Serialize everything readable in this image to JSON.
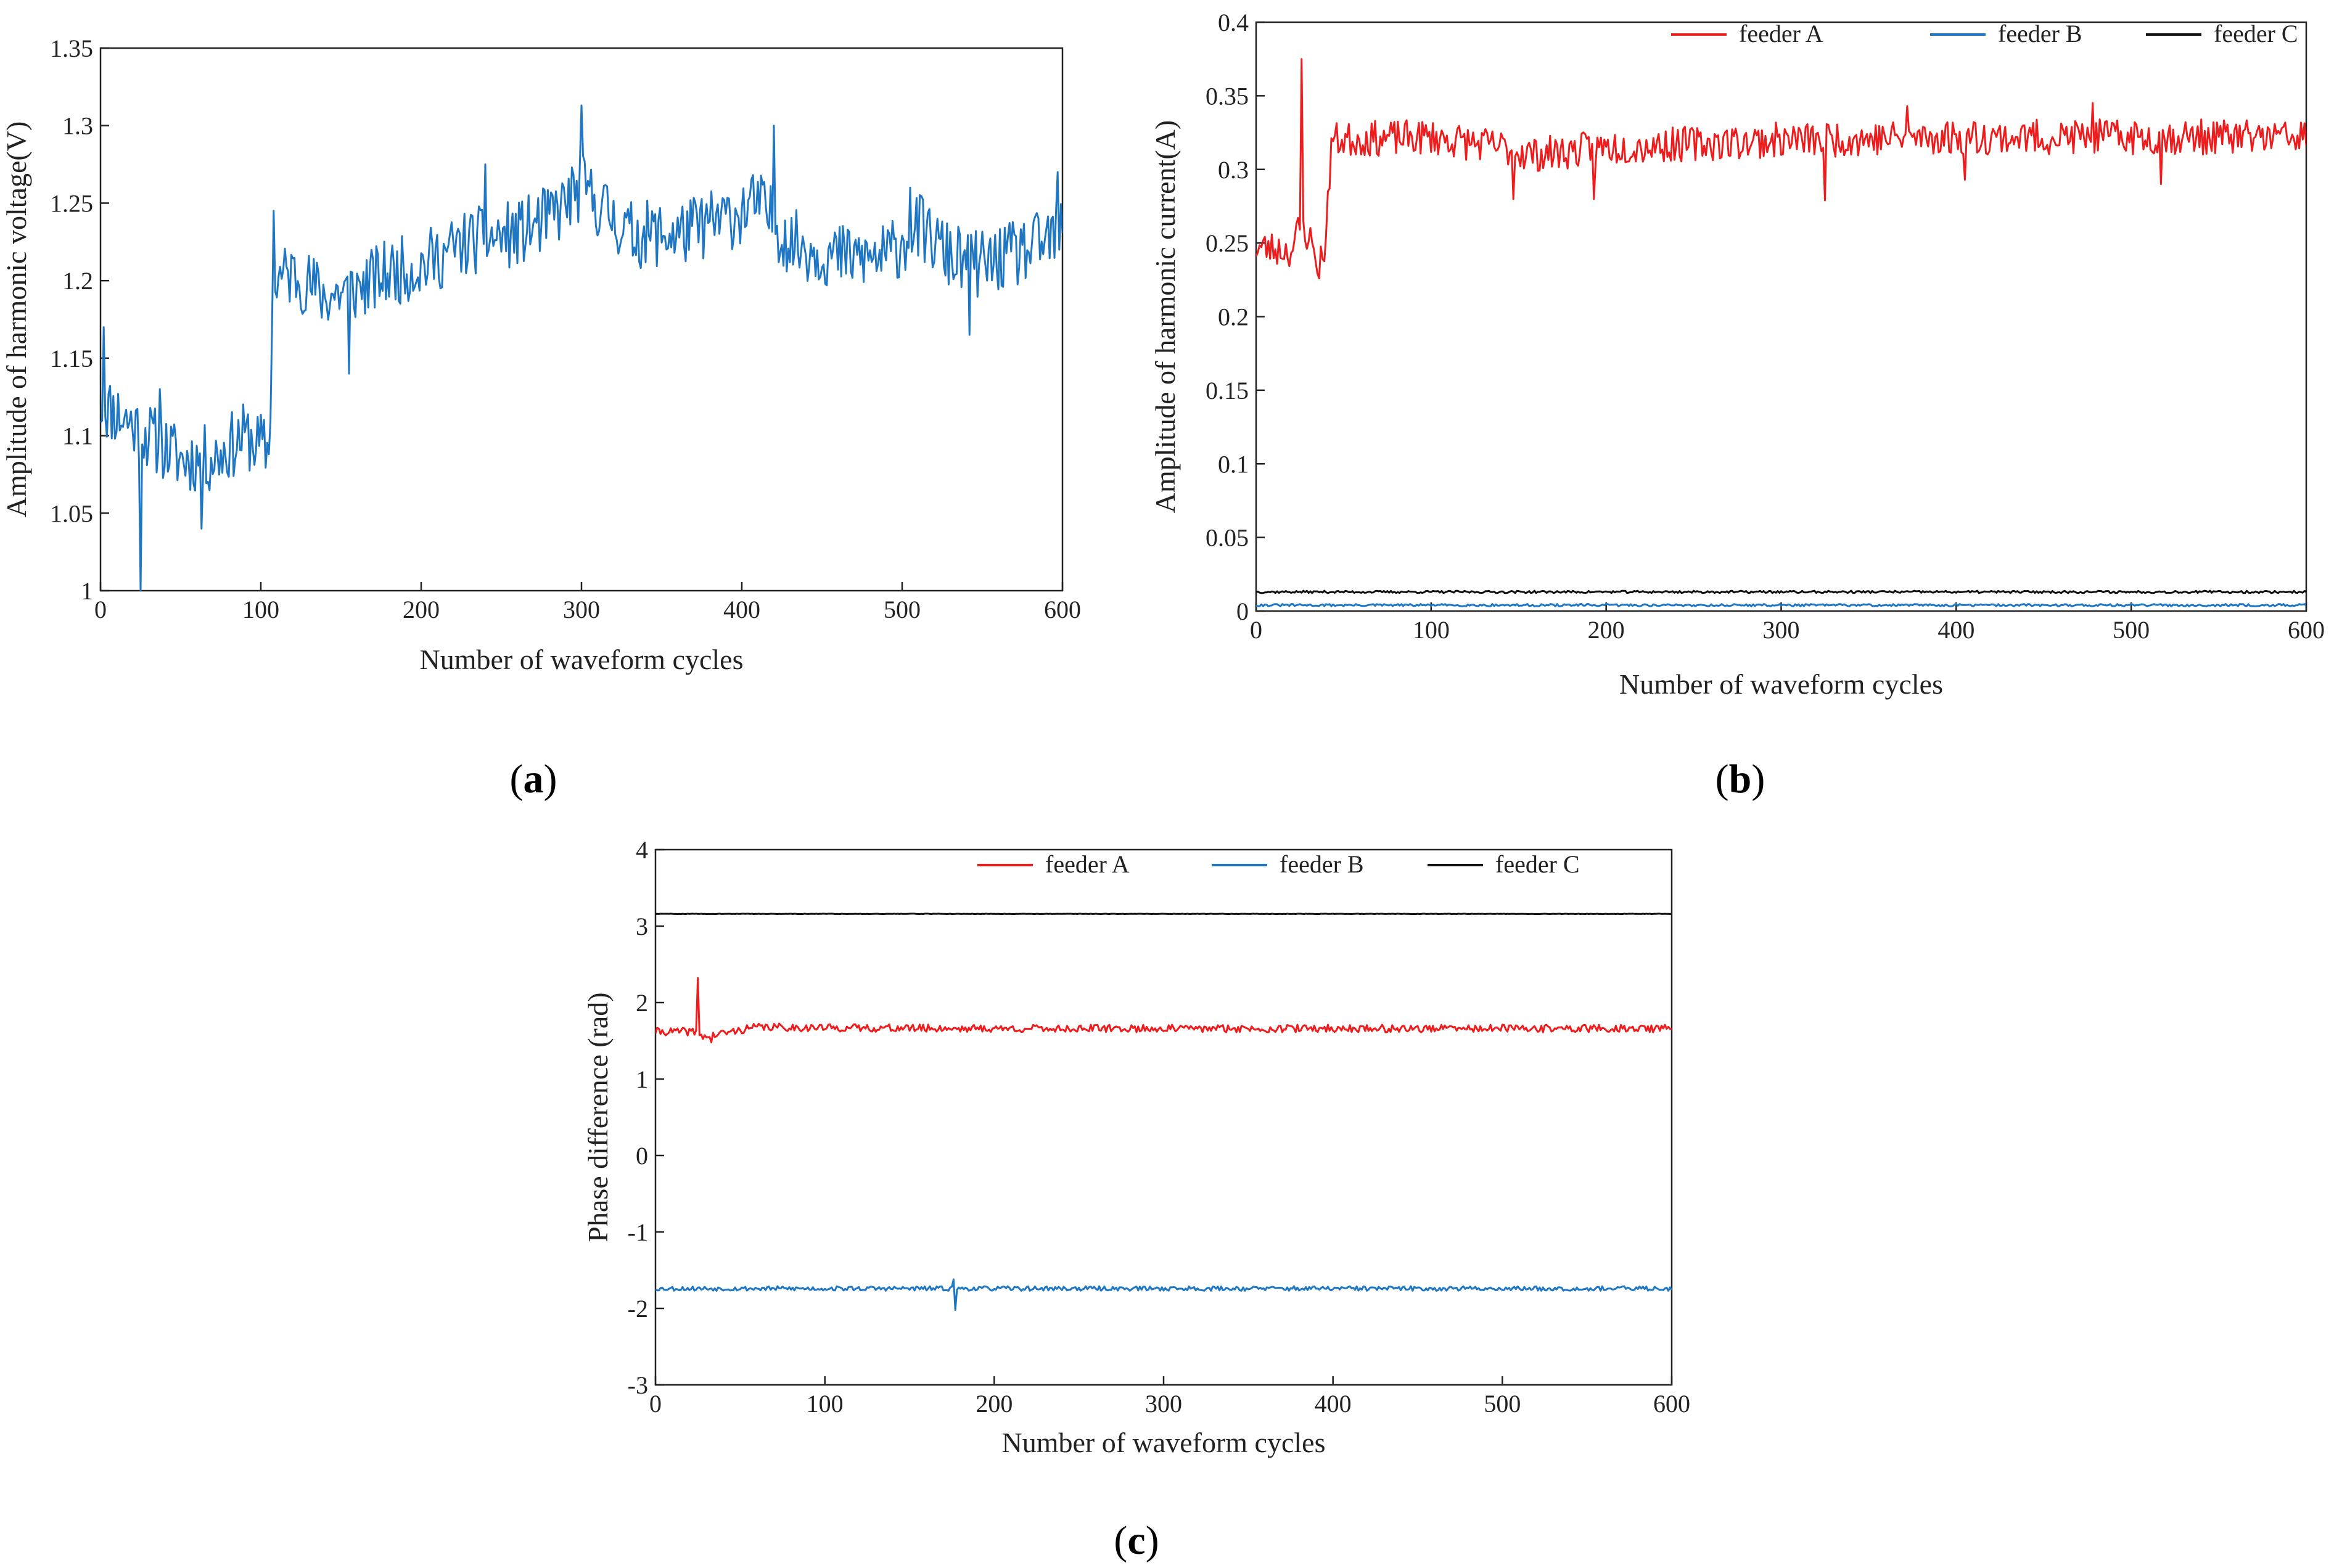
{
  "chart_data": [
    {
      "id": "a",
      "type": "line",
      "panel_label": "a",
      "xlabel": "Number of waveform cycles",
      "ylabel": "Amplitude of harmonic voltage(V)",
      "xlim": [
        0,
        600
      ],
      "ylim": [
        1,
        1.35
      ],
      "xticks": [
        "0",
        "100",
        "200",
        "300",
        "400",
        "500",
        "600"
      ],
      "yticks": [
        "1",
        "1.05",
        "1.1",
        "1.15",
        "1.2",
        "1.25",
        "1.3",
        "1.35"
      ],
      "legend": "none",
      "series": [
        {
          "name": "harmonic voltage",
          "color": "#1f77c4",
          "noise": 0.022,
          "seed": 11,
          "profile": [
            [
              0,
              1.12
            ],
            [
              10,
              1.115
            ],
            [
              30,
              1.1
            ],
            [
              50,
              1.085
            ],
            [
              70,
              1.085
            ],
            [
              90,
              1.1
            ],
            [
              105,
              1.09
            ],
            [
              108,
              1.2
            ],
            [
              120,
              1.205
            ],
            [
              140,
              1.19
            ],
            [
              160,
              1.195
            ],
            [
              180,
              1.205
            ],
            [
              200,
              1.21
            ],
            [
              230,
              1.225
            ],
            [
              260,
              1.23
            ],
            [
              280,
              1.24
            ],
            [
              300,
              1.26
            ],
            [
              330,
              1.23
            ],
            [
              360,
              1.23
            ],
            [
              390,
              1.24
            ],
            [
              410,
              1.25
            ],
            [
              430,
              1.225
            ],
            [
              460,
              1.215
            ],
            [
              490,
              1.215
            ],
            [
              510,
              1.235
            ],
            [
              530,
              1.215
            ],
            [
              550,
              1.21
            ],
            [
              580,
              1.22
            ],
            [
              600,
              1.23
            ]
          ],
          "spikes": [
            [
              2,
              1.17
            ],
            [
              25,
              1.0
            ],
            [
              37,
              1.13
            ],
            [
              63,
              1.04
            ],
            [
              108,
              1.245
            ],
            [
              155,
              1.14
            ],
            [
              240,
              1.275
            ],
            [
              300,
              1.313
            ],
            [
              420,
              1.3
            ],
            [
              505,
              1.26
            ],
            [
              542,
              1.165
            ],
            [
              597,
              1.27
            ]
          ]
        }
      ]
    },
    {
      "id": "b",
      "type": "line",
      "panel_label": "b",
      "xlabel": "Number of waveform cycles",
      "ylabel": "Amplitude of harmonic current(A)",
      "xlim": [
        0,
        600
      ],
      "ylim": [
        0,
        0.4
      ],
      "xticks": [
        "0",
        "100",
        "200",
        "300",
        "400",
        "500",
        "600"
      ],
      "yticks": [
        "0",
        "0.05",
        "0.1",
        "0.15",
        "0.2",
        "0.25",
        "0.3",
        "0.35",
        "0.4"
      ],
      "legend": "top-right",
      "series": [
        {
          "name": "feeder A",
          "color": "#ee1c1c",
          "noise": 0.012,
          "seed": 23,
          "profile": [
            [
              0,
              0.247
            ],
            [
              22,
              0.245
            ],
            [
              24,
              0.262
            ],
            [
              30,
              0.255
            ],
            [
              33,
              0.245
            ],
            [
              36,
              0.235
            ],
            [
              40,
              0.252
            ],
            [
              43,
              0.32
            ],
            [
              100,
              0.322
            ],
            [
              140,
              0.315
            ],
            [
              160,
              0.31
            ],
            [
              200,
              0.315
            ],
            [
              300,
              0.32
            ],
            [
              400,
              0.322
            ],
            [
              500,
              0.322
            ],
            [
              600,
              0.322
            ]
          ],
          "spikes": [
            [
              26,
              0.375
            ],
            [
              36,
              0.226
            ],
            [
              147,
              0.28
            ],
            [
              193,
              0.28
            ],
            [
              325,
              0.279
            ],
            [
              372,
              0.343
            ],
            [
              405,
              0.293
            ],
            [
              478,
              0.345
            ],
            [
              517,
              0.29
            ],
            [
              600,
              0.316
            ]
          ]
        },
        {
          "name": "feeder B",
          "color": "#1f77c4",
          "noise": 0.0008,
          "seed": 31,
          "profile": [
            [
              0,
              0.004
            ],
            [
              600,
              0.004
            ]
          ],
          "spikes": []
        },
        {
          "name": "feeder C",
          "color": "#111111",
          "noise": 0.0008,
          "seed": 37,
          "profile": [
            [
              0,
              0.013
            ],
            [
              600,
              0.013
            ]
          ],
          "spikes": []
        }
      ]
    },
    {
      "id": "c",
      "type": "line",
      "panel_label": "c",
      "xlabel": "Number of waveform cycles",
      "ylabel": "Phase difference (rad)",
      "xlim": [
        0,
        600
      ],
      "ylim": [
        -3,
        4
      ],
      "xticks": [
        "0",
        "100",
        "200",
        "300",
        "400",
        "500",
        "600"
      ],
      "yticks": [
        "-3",
        "-2",
        "-1",
        "0",
        "1",
        "2",
        "3",
        "4"
      ],
      "legend": "top-right",
      "series": [
        {
          "name": "feeder A",
          "color": "#ee1c1c",
          "noise": 0.05,
          "seed": 41,
          "profile": [
            [
              0,
              1.62
            ],
            [
              22,
              1.62
            ],
            [
              30,
              1.55
            ],
            [
              40,
              1.6
            ],
            [
              60,
              1.68
            ],
            [
              100,
              1.67
            ],
            [
              200,
              1.66
            ],
            [
              300,
              1.66
            ],
            [
              400,
              1.66
            ],
            [
              500,
              1.66
            ],
            [
              600,
              1.66
            ]
          ],
          "spikes": [
            [
              25,
              2.32
            ],
            [
              33,
              1.48
            ]
          ]
        },
        {
          "name": "feeder B",
          "color": "#1f77c4",
          "noise": 0.03,
          "seed": 53,
          "profile": [
            [
              0,
              -1.74
            ],
            [
              600,
              -1.74
            ]
          ],
          "spikes": [
            [
              176,
              -1.62
            ],
            [
              177,
              -2.02
            ]
          ]
        },
        {
          "name": "feeder C",
          "color": "#111111",
          "noise": 0.003,
          "seed": 59,
          "profile": [
            [
              0,
              3.16
            ],
            [
              600,
              3.16
            ]
          ],
          "spikes": []
        }
      ]
    }
  ]
}
